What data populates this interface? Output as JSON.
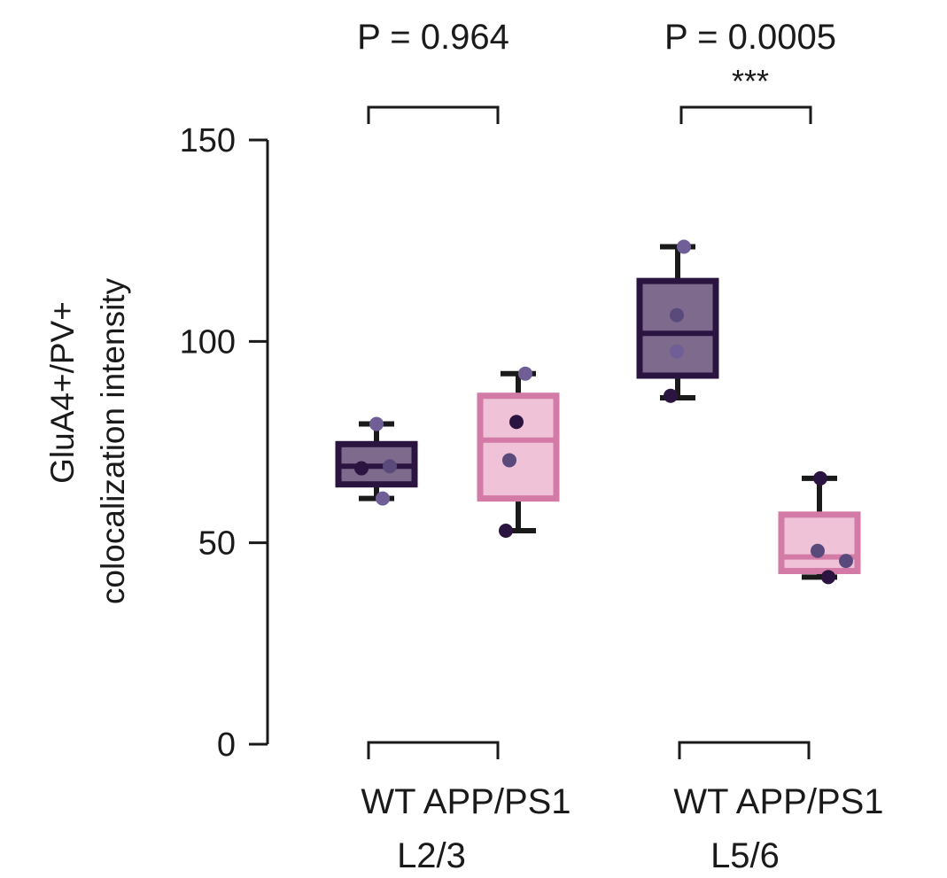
{
  "chart_data": {
    "type": "box",
    "ylabel_line1": "GluA4+/PV+",
    "ylabel_line2": "colocalization intensity",
    "ylim": [
      0,
      150
    ],
    "yticks": [
      0,
      50,
      100,
      150
    ],
    "ytick_labels": [
      "0",
      "50",
      "100",
      "150"
    ],
    "groups": [
      {
        "name": "L2/3",
        "pvalue": "P = 0.964",
        "stars": "",
        "boxes": [
          {
            "genotype": "WT",
            "q1": 64.5,
            "median": 69,
            "q3": 74.5,
            "whisker_low": 61,
            "whisker_high": 79.5,
            "points": [
              68.5,
              69,
              79.5,
              61
            ]
          },
          {
            "genotype": "APP/PS1",
            "q1": 61,
            "median": 75.5,
            "q3": 86.5,
            "whisker_low": 53,
            "whisker_high": 92,
            "points": [
              92,
              80,
              70.5,
              53
            ]
          }
        ]
      },
      {
        "name": "L5/6",
        "pvalue": "P = 0.0005",
        "stars": "***",
        "boxes": [
          {
            "genotype": "WT",
            "q1": 91.5,
            "median": 102,
            "q3": 115,
            "whisker_low": 86,
            "whisker_high": 123.5,
            "points": [
              123.5,
              106.5,
              97.5,
              86.5
            ]
          },
          {
            "genotype": "APP/PS1",
            "q1": 43,
            "median": 46.5,
            "q3": 57,
            "whisker_low": 41.5,
            "whisker_high": 66,
            "points": [
              66,
              48,
              45.5,
              41.5
            ]
          }
        ]
      }
    ],
    "grid": false,
    "legend": "none"
  },
  "colors": {
    "wt_dark": "#2b1540",
    "wt_fill": "#7e6a8c",
    "app_dark": "#d37aa6",
    "app_fill": "#efc2d8",
    "whisker": "#1a1a1a",
    "point_dark": "#2b1540",
    "point_mid": "#5a4a7c",
    "point_light": "#6f5f96"
  },
  "text": {
    "group1_xlabels": "WT APP/PS1",
    "group1_name": "L2/3",
    "group2_xlabels": "WT APP/PS1",
    "group2_name": "L5/6"
  }
}
